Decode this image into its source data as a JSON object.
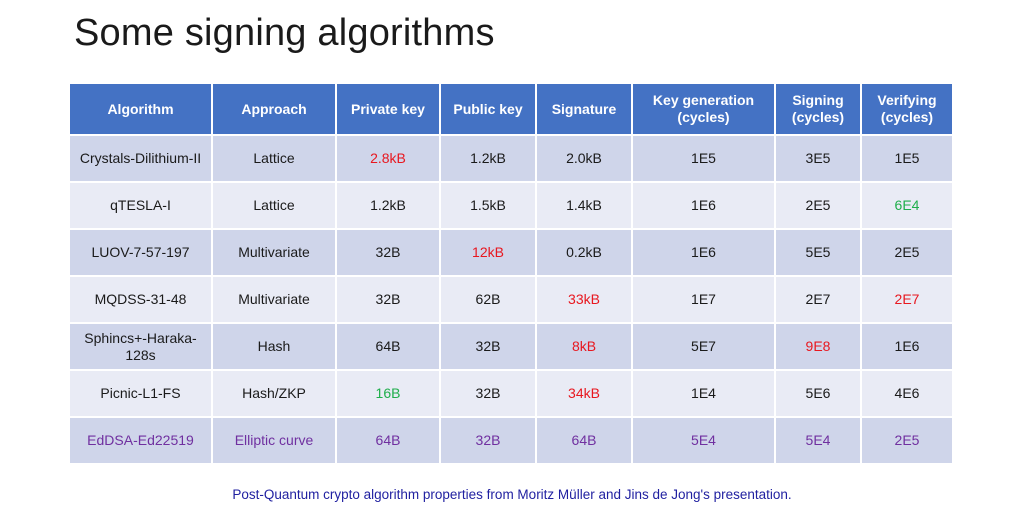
{
  "title": "Some signing algorithms",
  "table": {
    "headers": [
      "Algorithm",
      "Approach",
      "Private key",
      "Public key",
      "Signature",
      "Key generation (cycles)",
      "Signing (cycles)",
      "Verifying (cycles)"
    ],
    "rows": [
      {
        "cells": [
          "Crystals-Dilithium-II",
          "Lattice",
          "2.8kB",
          "1.2kB",
          "2.0kB",
          "1E5",
          "3E5",
          "1E5"
        ],
        "colors": [
          "",
          "",
          "red",
          "",
          "",
          "",
          "",
          ""
        ]
      },
      {
        "cells": [
          "qTESLA-I",
          "Lattice",
          "1.2kB",
          "1.5kB",
          "1.4kB",
          "1E6",
          "2E5",
          "6E4"
        ],
        "colors": [
          "",
          "",
          "",
          "",
          "",
          "",
          "",
          "green"
        ]
      },
      {
        "cells": [
          "LUOV-7-57-197",
          "Multivariate",
          "32B",
          "12kB",
          "0.2kB",
          "1E6",
          "5E5",
          "2E5"
        ],
        "colors": [
          "",
          "",
          "",
          "red",
          "",
          "",
          "",
          ""
        ]
      },
      {
        "cells": [
          "MQDSS-31-48",
          "Multivariate",
          "32B",
          "62B",
          "33kB",
          "1E7",
          "2E7",
          "2E7"
        ],
        "colors": [
          "",
          "",
          "",
          "",
          "red",
          "",
          "",
          "red"
        ]
      },
      {
        "cells": [
          "Sphincs+-Haraka-128s",
          "Hash",
          "64B",
          "32B",
          "8kB",
          "5E7",
          "9E8",
          "1E6"
        ],
        "colors": [
          "",
          "",
          "",
          "",
          "red",
          "",
          "red",
          ""
        ]
      },
      {
        "cells": [
          "Picnic-L1-FS",
          "Hash/ZKP",
          "16B",
          "32B",
          "34kB",
          "1E4",
          "5E6",
          "4E6"
        ],
        "colors": [
          "",
          "",
          "green",
          "",
          "red",
          "",
          "",
          ""
        ]
      },
      {
        "cells": [
          "EdDSA-Ed22519",
          "Elliptic curve",
          "64B",
          "32B",
          "64B",
          "5E4",
          "5E4",
          "2E5"
        ],
        "colors": [
          "",
          "",
          "",
          "",
          "",
          "",
          "",
          ""
        ],
        "highlight": true
      }
    ]
  },
  "colors": {
    "header_bg": "#4472c4",
    "row_odd_bg": "#cfd5ea",
    "row_even_bg": "#e9ebf5",
    "red": "#e8171f",
    "green": "#1fae4b",
    "purple": "#7030a0",
    "caption": "#1f1fa0"
  },
  "caption": "Post-Quantum crypto algorithm properties from Moritz Müller and Jins de Jong's presentation."
}
